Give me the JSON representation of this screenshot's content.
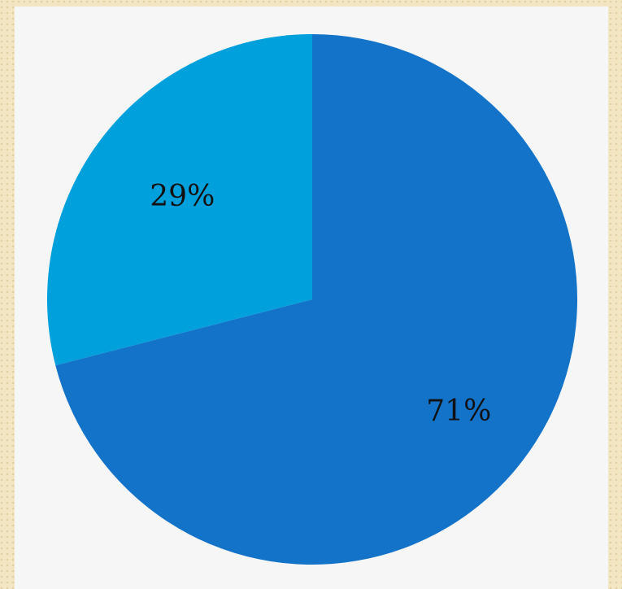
{
  "chart_data": {
    "type": "pie",
    "title": "",
    "series": [
      {
        "values": [
          71,
          29
        ],
        "labels": [
          "71%",
          "29%"
        ]
      }
    ],
    "colors": [
      "#1373c9",
      "#00a0dc"
    ],
    "start_angle_deg": 0,
    "direction": "clockwise",
    "legend": "none"
  }
}
